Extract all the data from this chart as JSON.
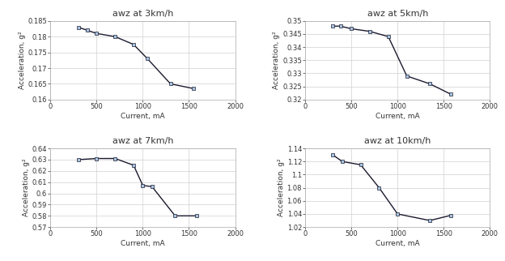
{
  "subplots": [
    {
      "title": "awz at 3km/h",
      "x": [
        300,
        400,
        500,
        700,
        900,
        1050,
        1300,
        1550
      ],
      "y": [
        0.183,
        0.182,
        0.181,
        0.18,
        0.1775,
        0.173,
        0.165,
        0.1635
      ],
      "xlim": [
        0,
        2000
      ],
      "ylim": [
        0.16,
        0.185
      ],
      "yticks": [
        0.16,
        0.165,
        0.17,
        0.175,
        0.18,
        0.185
      ],
      "xticks": [
        0,
        500,
        1000,
        1500,
        2000
      ]
    },
    {
      "title": "awz at 5km/h",
      "x": [
        300,
        380,
        500,
        700,
        900,
        1100,
        1350,
        1580
      ],
      "y": [
        0.348,
        0.348,
        0.347,
        0.346,
        0.344,
        0.329,
        0.326,
        0.322
      ],
      "xlim": [
        0,
        2000
      ],
      "ylim": [
        0.32,
        0.35
      ],
      "yticks": [
        0.32,
        0.325,
        0.33,
        0.335,
        0.34,
        0.345,
        0.35
      ],
      "xticks": [
        0,
        500,
        1000,
        1500,
        2000
      ]
    },
    {
      "title": "awz at 7km/h",
      "x": [
        300,
        500,
        700,
        900,
        1000,
        1100,
        1350,
        1580
      ],
      "y": [
        0.63,
        0.631,
        0.631,
        0.625,
        0.607,
        0.606,
        0.58,
        0.58
      ],
      "xlim": [
        0,
        2000
      ],
      "ylim": [
        0.57,
        0.64
      ],
      "yticks": [
        0.57,
        0.58,
        0.59,
        0.6,
        0.61,
        0.62,
        0.63,
        0.64
      ],
      "xticks": [
        0,
        500,
        1000,
        1500,
        2000
      ]
    },
    {
      "title": "awz at 10km/h",
      "x": [
        300,
        400,
        600,
        800,
        1000,
        1350,
        1580
      ],
      "y": [
        1.13,
        1.12,
        1.115,
        1.08,
        1.04,
        1.03,
        1.038
      ],
      "xlim": [
        0,
        2000
      ],
      "ylim": [
        1.02,
        1.14
      ],
      "yticks": [
        1.02,
        1.04,
        1.06,
        1.08,
        1.1,
        1.12,
        1.14
      ],
      "xticks": [
        0,
        500,
        1000,
        1500,
        2000
      ]
    }
  ],
  "xlabel": "Current, mA",
  "ylabel": "Acceleration, g²",
  "line_color": "#1a1a2e",
  "marker": "s",
  "marker_size": 2.5,
  "marker_face": "#a8c4e0",
  "linewidth": 1.0,
  "grid_color": "#d0d0d0",
  "bg_color": "#ffffff",
  "title_fontsize": 8,
  "label_fontsize": 6.5,
  "tick_fontsize": 6
}
